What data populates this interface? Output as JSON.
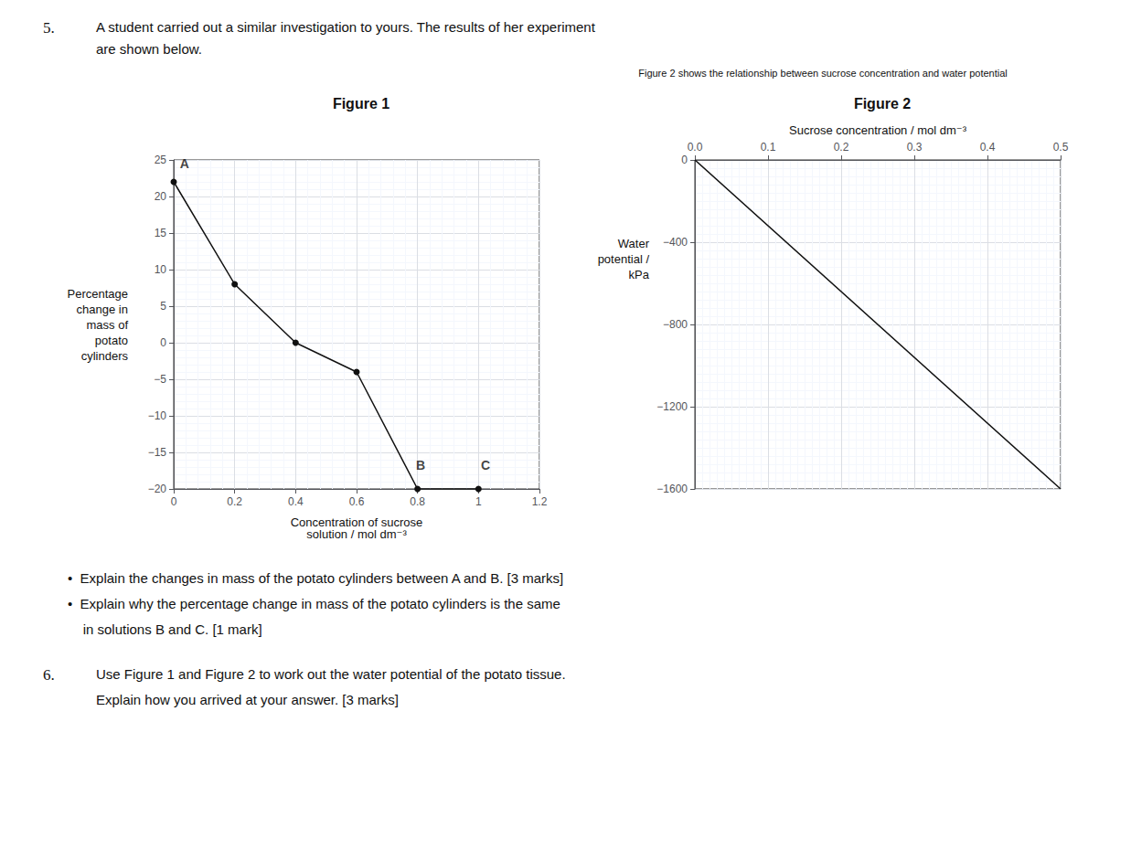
{
  "chart_data": [
    {
      "type": "line",
      "title": "Figure 1",
      "xlabel": "Concentration of sucrose\nsolution / mol dm⁻³",
      "ylabel": "Percentage\nchange in\nmass of\npotato\ncylinders",
      "x": [
        0,
        0.2,
        0.4,
        0.6,
        0.8,
        1.0
      ],
      "values": [
        22,
        8,
        0,
        -4,
        -20,
        -20
      ],
      "color": "#111111",
      "marker": "circle",
      "xlim": [
        0,
        1.2
      ],
      "ylim": [
        -20,
        25
      ],
      "xticks": [
        0,
        0.2,
        0.4,
        0.6,
        0.8,
        1,
        1.2
      ],
      "yticks": [
        {
          "value": -20,
          "label": "−20"
        },
        {
          "value": -15,
          "label": "−15"
        },
        {
          "value": -10,
          "label": "−10"
        },
        {
          "value": -5,
          "label": "−5"
        },
        0,
        5,
        10,
        15,
        20,
        25
      ],
      "grid": true,
      "annotations": [
        {
          "text": "A",
          "x": 0.02,
          "y": 23.5
        },
        {
          "text": "B",
          "x": 0.795,
          "y": -17.8
        },
        {
          "text": "C",
          "x": 1.008,
          "y": -17.8
        }
      ]
    },
    {
      "type": "line",
      "title": "Figure 2",
      "subtitle": "Figure 2 shows the relationship between sucrose concentration and water potential",
      "xlabel": "Sucrose concentration / mol dm⁻³",
      "ylabel": "Water\npotential /\nkPa",
      "x": [
        0,
        0.5
      ],
      "values": [
        0,
        -1600
      ],
      "color": "#111111",
      "marker": "none",
      "xlim": [
        0,
        0.5
      ],
      "ylim": [
        -1600,
        0
      ],
      "xticks": [
        {
          "value": 0,
          "label": "0.0"
        },
        0.1,
        0.2,
        0.3,
        0.4,
        0.5
      ],
      "yticks": [
        0,
        {
          "value": -400,
          "label": "−400"
        },
        {
          "value": -800,
          "label": "−800"
        },
        {
          "value": -1200,
          "label": "−1200"
        },
        {
          "value": -1600,
          "label": "−1600"
        }
      ],
      "grid": true
    }
  ],
  "annotations": [
    {
      "number": "5.",
      "lines": [
        "A student carried out a similar investigation to yours. The results of her experiment",
        "are shown below."
      ]
    },
    {
      "lines": [
        "•  Explain the changes in mass of the potato cylinders between A and B. [3 marks]",
        "•  Explain why the percentage change in mass of the potato cylinders is the same",
        "    in solutions B and C. [1 mark]"
      ]
    },
    {
      "number": "6.",
      "lines": [
        "Use Figure 1 and Figure 2 to work out the water potential of the potato tissue.",
        "Explain how you arrived at your answer. [3 marks]"
      ]
    }
  ]
}
